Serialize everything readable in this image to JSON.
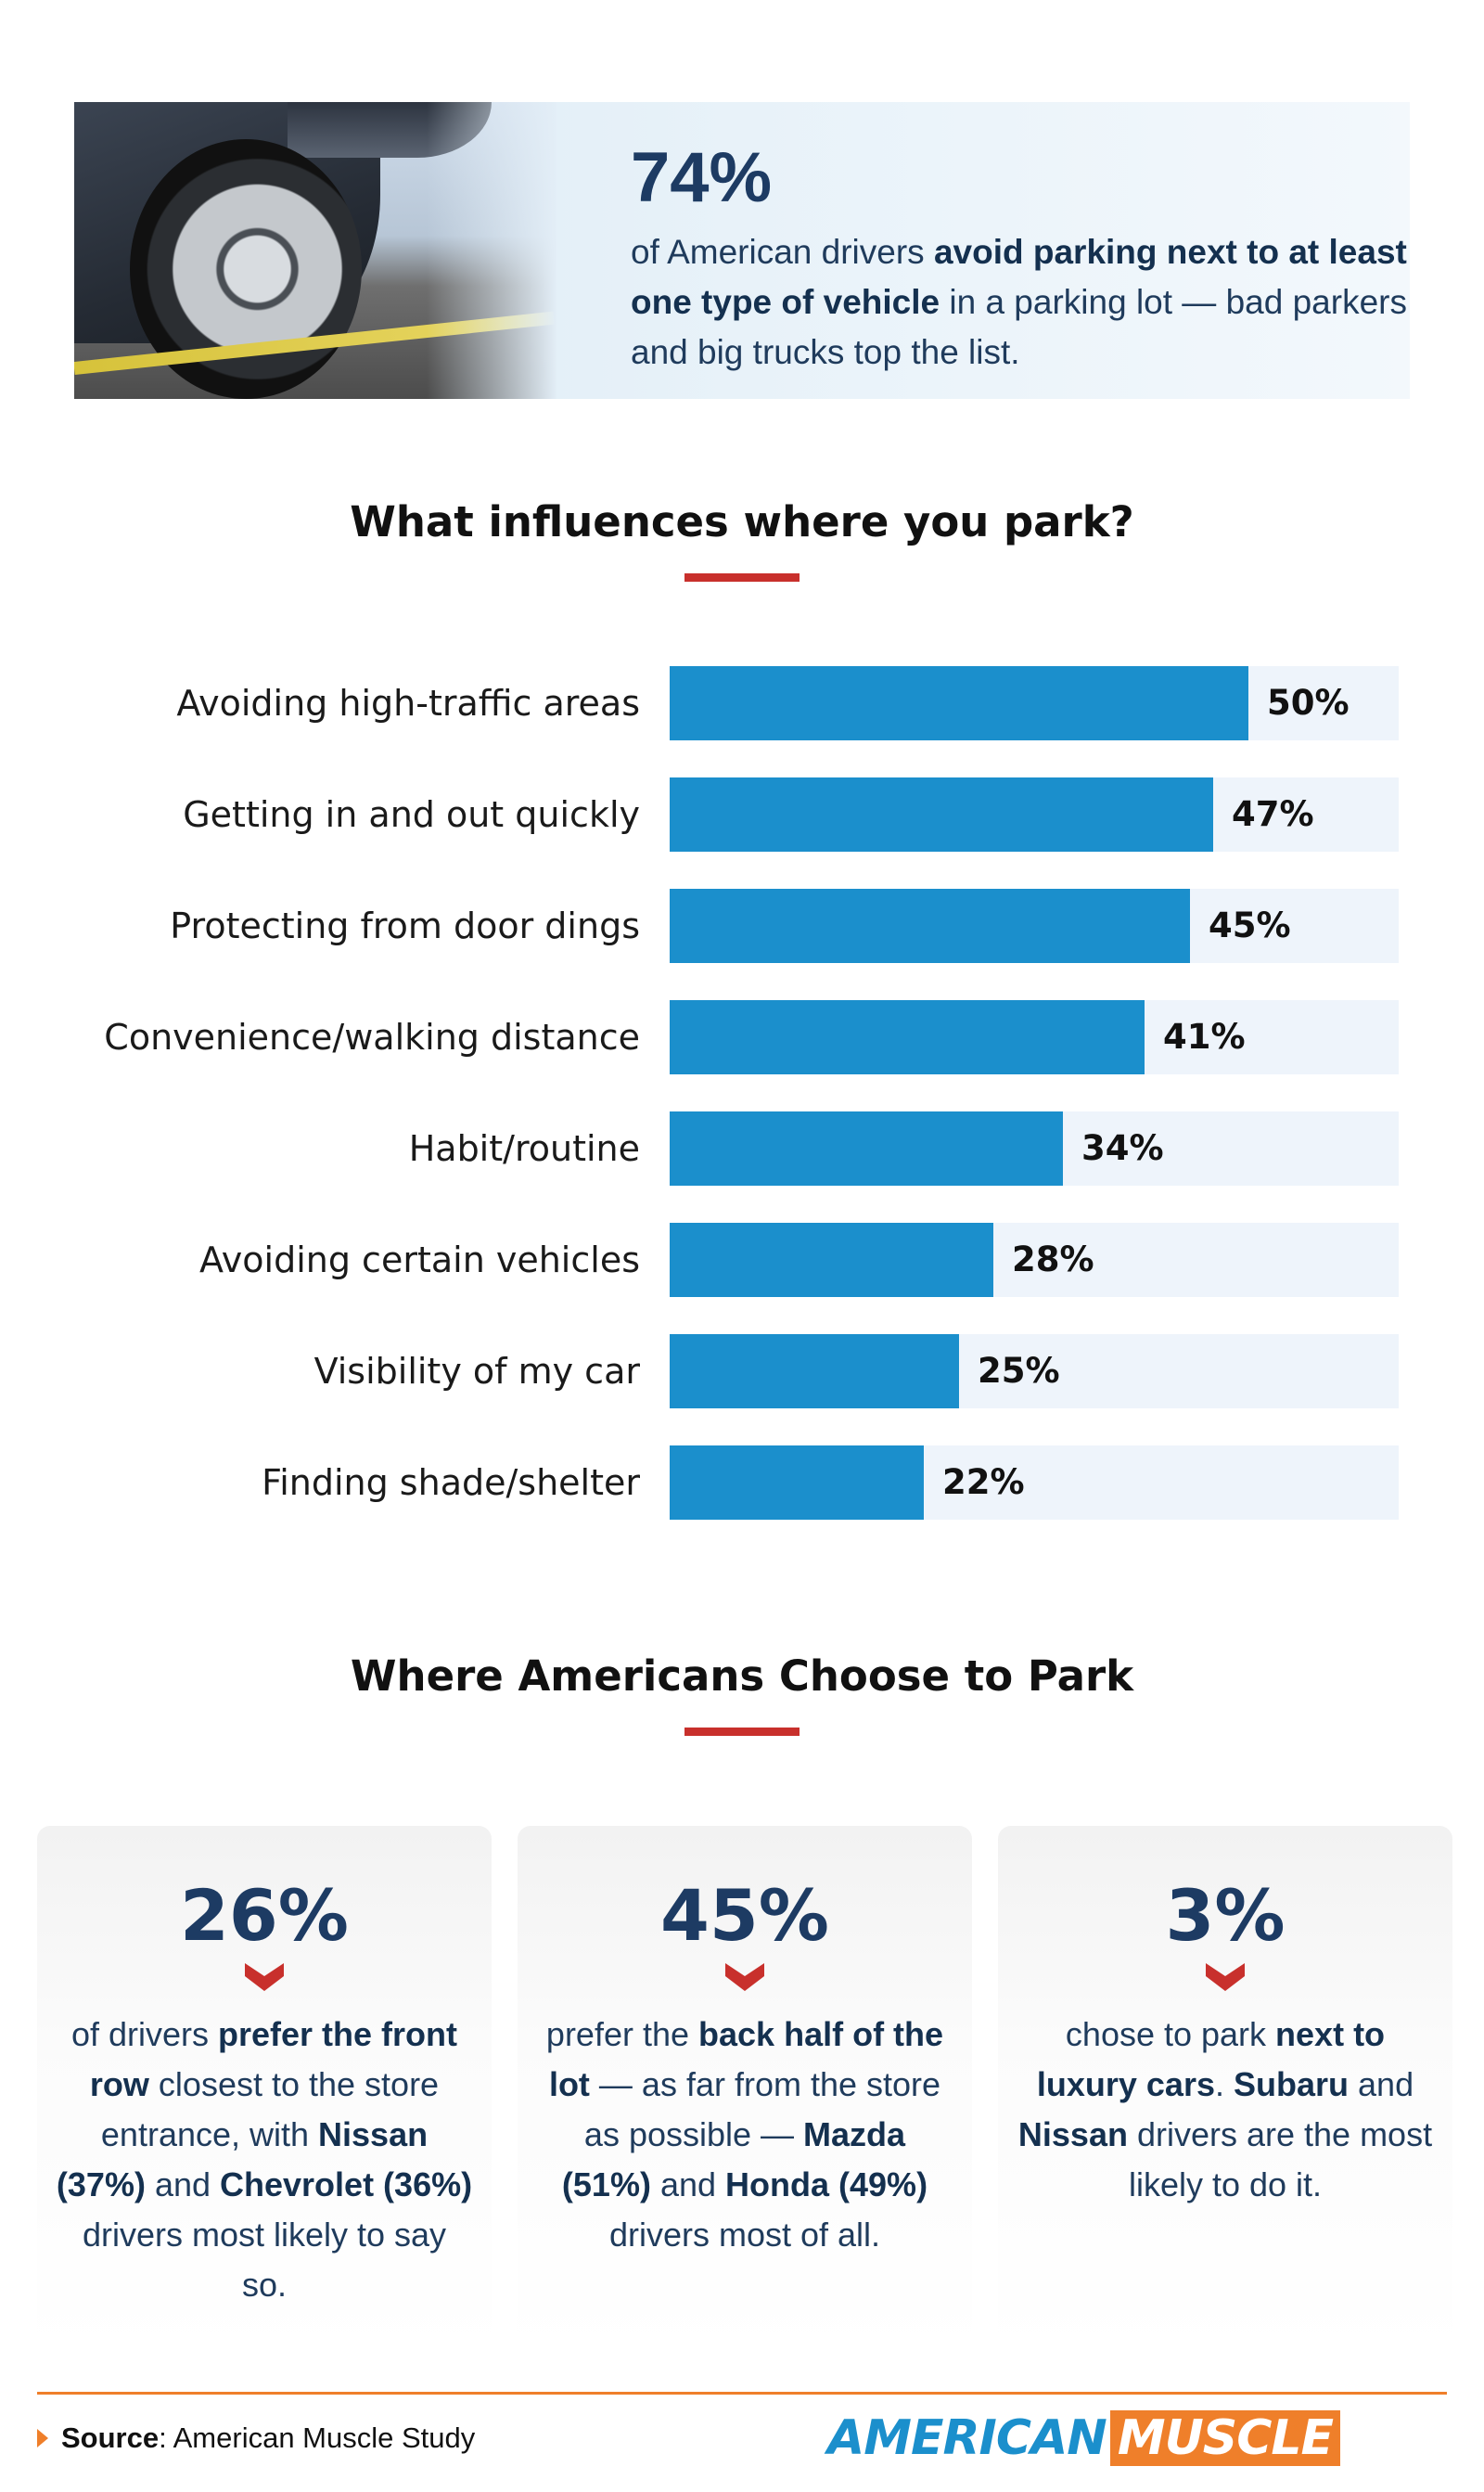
{
  "hero": {
    "stat": "74%",
    "text_1": "of American drivers ",
    "text_2": "avoid parking next to at least one type of vehicle",
    "text_3": " in a parking lot — bad parkers and big trucks top the list."
  },
  "chart_data": {
    "type": "bar",
    "orientation": "horizontal",
    "title": "What influences where you park?",
    "categories": [
      "Avoiding high-traffic areas",
      "Getting in and out quickly",
      "Protecting from door dings",
      "Convenience/walking distance",
      "Habit/routine",
      "Avoiding certain vehicles",
      "Visibility of my car",
      "Finding shade/shelter"
    ],
    "values": [
      50,
      47,
      45,
      41,
      34,
      28,
      25,
      22
    ],
    "value_labels": [
      "50%",
      "47%",
      "45%",
      "41%",
      "34%",
      "28%",
      "25%",
      "22%"
    ],
    "xlim": [
      0,
      63
    ],
    "unit": "%",
    "grid": false,
    "colors": {
      "bar": "#1b8fcc",
      "track": "#eef4fb"
    }
  },
  "section2": {
    "title": "Where Americans Choose to Park"
  },
  "cards": [
    {
      "stat": "26%",
      "parts": [
        {
          "t": "of drivers ",
          "b": false
        },
        {
          "t": "prefer the front row",
          "b": true
        },
        {
          "t": " closest to the store entrance, with ",
          "b": false
        },
        {
          "t": "Nissan (37%)",
          "b": true
        },
        {
          "t": " and ",
          "b": false
        },
        {
          "t": "Chevrolet (36%)",
          "b": true
        },
        {
          "t": " drivers most likely to say so.",
          "b": false
        }
      ]
    },
    {
      "stat": "45%",
      "parts": [
        {
          "t": "prefer the ",
          "b": false
        },
        {
          "t": "back half of the lot",
          "b": true
        },
        {
          "t": " — as far from the store as possible — ",
          "b": false
        },
        {
          "t": "Mazda (51%)",
          "b": true
        },
        {
          "t": " and ",
          "b": false
        },
        {
          "t": "Honda (49%)",
          "b": true
        },
        {
          "t": " drivers most of all.",
          "b": false
        }
      ]
    },
    {
      "stat": "3%",
      "parts": [
        {
          "t": "chose to park ",
          "b": false
        },
        {
          "t": "next to luxury cars",
          "b": true
        },
        {
          "t": ". ",
          "b": false
        },
        {
          "t": "Subaru",
          "b": true
        },
        {
          "t": " and ",
          "b": false
        },
        {
          "t": "Nissan",
          "b": true
        },
        {
          "t": " drivers are the most likely to do it.",
          "b": false
        }
      ]
    }
  ],
  "footer": {
    "source_label": "Source",
    "source_text": ": American Muscle Study",
    "logo_a": "AMERICAN",
    "logo_b": "MUSCLE"
  },
  "colors": {
    "accent_red": "#c8302c",
    "accent_orange": "#ef7f2a",
    "navy": "#1d3b63",
    "blue": "#1b8fcc"
  },
  "icons": {
    "chevron": "chevron-down-icon",
    "source_marker": "triangle-right-icon"
  }
}
